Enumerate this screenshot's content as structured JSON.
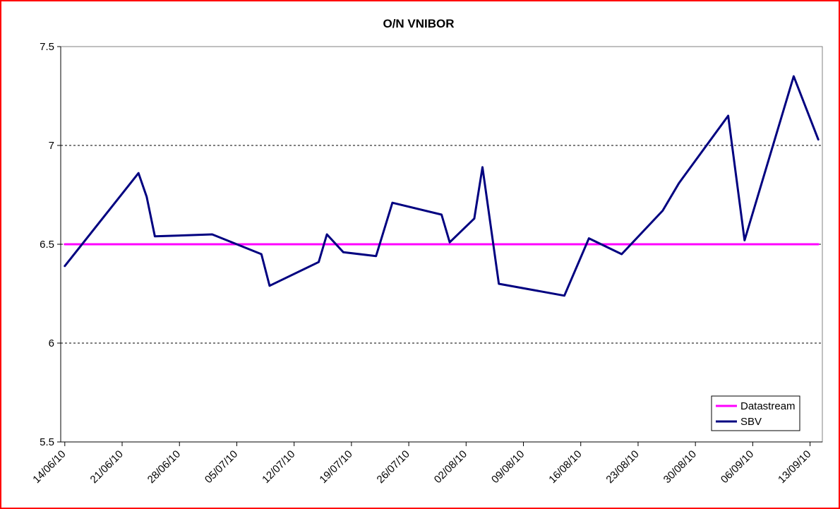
{
  "chart_data": {
    "type": "line",
    "title": "O/N VNIBOR",
    "xlabel": "",
    "ylabel": "",
    "ylim": [
      5.5,
      7.5
    ],
    "yticks": [
      "5.5",
      "6",
      "6.5",
      "7",
      "7.5"
    ],
    "grid": "horizontal dashed at 6 and 7",
    "legend_position": "bottom-right",
    "x_tick_labels": [
      "14/06/10",
      "21/06/10",
      "28/06/10",
      "05/07/10",
      "12/07/10",
      "19/07/10",
      "26/07/10",
      "02/08/10",
      "09/08/10",
      "16/08/10",
      "23/08/10",
      "30/08/10",
      "06/09/10",
      "13/09/10"
    ],
    "x_range": [
      "14/06/10",
      "14/09/10"
    ],
    "series": [
      {
        "name": "Datastream",
        "color": "#ff00ff",
        "points": [
          {
            "x": "14/06/10",
            "y": 6.5
          },
          {
            "x": "14/09/10",
            "y": 6.5
          }
        ]
      },
      {
        "name": "SBV",
        "color": "#000080",
        "points": [
          {
            "x": "14/06/10",
            "y": 6.39
          },
          {
            "x": "23/06/10",
            "y": 6.86
          },
          {
            "x": "24/06/10",
            "y": 6.74
          },
          {
            "x": "25/06/10",
            "y": 6.54
          },
          {
            "x": "02/07/10",
            "y": 6.55
          },
          {
            "x": "08/07/10",
            "y": 6.45
          },
          {
            "x": "09/07/10",
            "y": 6.29
          },
          {
            "x": "15/07/10",
            "y": 6.41
          },
          {
            "x": "16/07/10",
            "y": 6.55
          },
          {
            "x": "18/07/10",
            "y": 6.46
          },
          {
            "x": "22/07/10",
            "y": 6.44
          },
          {
            "x": "24/07/10",
            "y": 6.71
          },
          {
            "x": "30/07/10",
            "y": 6.65
          },
          {
            "x": "31/07/10",
            "y": 6.51
          },
          {
            "x": "03/08/10",
            "y": 6.63
          },
          {
            "x": "04/08/10",
            "y": 6.89
          },
          {
            "x": "06/08/10",
            "y": 6.3
          },
          {
            "x": "14/08/10",
            "y": 6.24
          },
          {
            "x": "17/08/10",
            "y": 6.53
          },
          {
            "x": "21/08/10",
            "y": 6.45
          },
          {
            "x": "26/08/10",
            "y": 6.67
          },
          {
            "x": "28/08/10",
            "y": 6.81
          },
          {
            "x": "03/09/10",
            "y": 7.15
          },
          {
            "x": "05/09/10",
            "y": 6.52
          },
          {
            "x": "11/09/10",
            "y": 7.35
          },
          {
            "x": "14/09/10",
            "y": 7.03
          }
        ]
      }
    ]
  }
}
